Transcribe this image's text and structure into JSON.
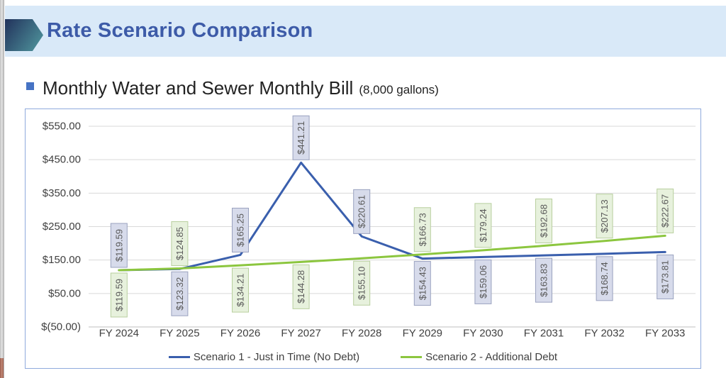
{
  "header": {
    "title": "Rate Scenario Comparison"
  },
  "subtitle": {
    "text": "Monthly Water and Sewer Monthly Bill",
    "suffix": "(8,000 gallons)"
  },
  "colors": {
    "header_bg": "#d9e9f8",
    "title_text": "#3d5ba8",
    "arrow_dark": "#24375f",
    "arrow_teal": "#4f949c",
    "bullet": "#4673c4",
    "chart_border": "#8faadc",
    "grid_line": "#d9d9d9",
    "axis_line": "#bfbfbf",
    "axis_text": "#404040",
    "data_label_text": "#595959"
  },
  "chart_data": {
    "type": "line",
    "title": "Monthly Water and Sewer Monthly Bill (8,000 gallons)",
    "categories": [
      "FY 2024",
      "FY 2025",
      "FY 2026",
      "FY 2027",
      "FY 2028",
      "FY 2029",
      "FY 2030",
      "FY 2031",
      "FY 2032",
      "FY 2033"
    ],
    "series": [
      {
        "name": "Scenario 1 - Just in Time (No Debt)",
        "color": "#3a5fad",
        "label_fill": "#d7dbeb",
        "label_border": "#9aa2bf",
        "values": [
          119.59,
          123.32,
          165.25,
          441.21,
          220.61,
          154.43,
          159.06,
          163.83,
          168.74,
          173.81
        ]
      },
      {
        "name": "Scenario 2 - Additional Debt",
        "color": "#8cc63f",
        "label_fill": "#e7f1dd",
        "label_border": "#b8cf9e",
        "values": [
          119.59,
          124.85,
          134.21,
          144.28,
          155.1,
          166.73,
          179.24,
          192.68,
          207.13,
          222.67
        ]
      }
    ],
    "value_prefix": "$",
    "y_tick_labels": [
      "$550.00",
      "$450.00",
      "$350.00",
      "$250.00",
      "$150.00",
      "$50.00",
      "$(50.00)"
    ],
    "y_tick_values": [
      550,
      450,
      350,
      250,
      150,
      50,
      -50
    ],
    "ylim": [
      -50,
      550
    ],
    "grid": true,
    "legend_position": "bottom"
  }
}
